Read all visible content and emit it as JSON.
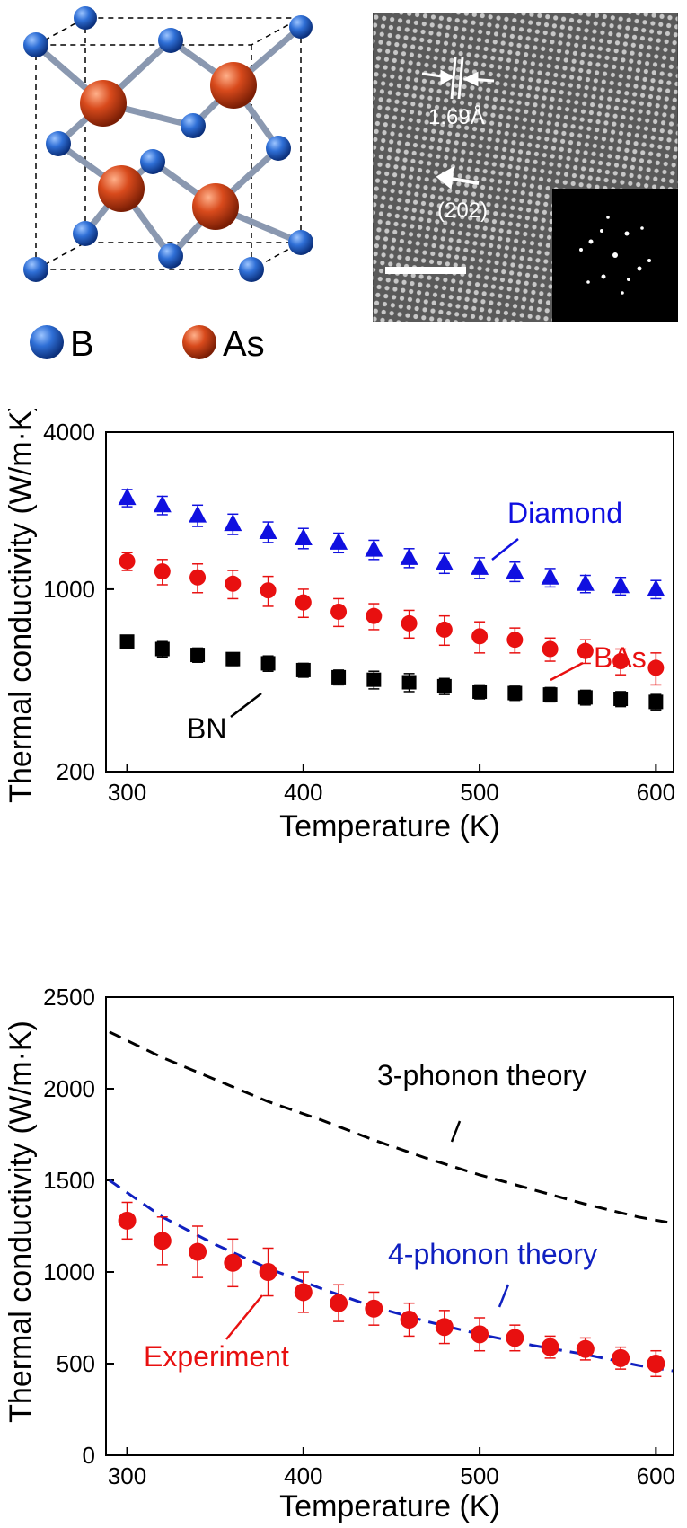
{
  "crystal": {
    "legend": [
      {
        "label": "B",
        "color": "#2f6fd6"
      },
      {
        "label": "As",
        "color": "#d84a1c"
      }
    ]
  },
  "tem": {
    "spacing_label": "1.69Å",
    "plane_label": "(202)"
  },
  "chart_data": [
    {
      "type": "scatter",
      "title": "",
      "xlabel": "Temperature (K)",
      "ylabel": "Thermal conductivity (W/m·K)",
      "xlim": [
        288,
        610
      ],
      "ylim": [
        200,
        4000
      ],
      "yscale": "log",
      "xticks": [
        300,
        400,
        500,
        600
      ],
      "yticks": [
        200,
        1000,
        4000
      ],
      "series": [
        {
          "name": "Diamond",
          "color": "#1010e0",
          "marker": "triangle",
          "x": [
            300,
            320,
            340,
            360,
            380,
            400,
            420,
            440,
            460,
            480,
            500,
            520,
            540,
            560,
            580,
            600
          ],
          "y": [
            2240,
            2100,
            1920,
            1780,
            1660,
            1570,
            1510,
            1420,
            1320,
            1260,
            1210,
            1170,
            1110,
            1050,
            1030,
            1000
          ],
          "err": [
            170,
            170,
            180,
            160,
            150,
            140,
            130,
            120,
            110,
            110,
            110,
            100,
            90,
            80,
            80,
            80
          ]
        },
        {
          "name": "BAs",
          "color": "#e81010",
          "marker": "circle",
          "x": [
            300,
            320,
            340,
            360,
            380,
            400,
            420,
            440,
            460,
            480,
            500,
            520,
            540,
            560,
            580,
            600
          ],
          "y": [
            1280,
            1170,
            1110,
            1050,
            990,
            890,
            820,
            790,
            740,
            700,
            660,
            640,
            590,
            580,
            530,
            500
          ],
          "err": [
            100,
            130,
            140,
            130,
            130,
            110,
            100,
            90,
            90,
            90,
            90,
            70,
            60,
            60,
            60,
            70
          ]
        },
        {
          "name": "BN",
          "color": "#000000",
          "marker": "square",
          "x": [
            300,
            320,
            340,
            360,
            380,
            400,
            420,
            440,
            460,
            480,
            500,
            520,
            540,
            560,
            580,
            600
          ],
          "y": [
            630,
            590,
            560,
            540,
            520,
            490,
            460,
            450,
            440,
            425,
            405,
            400,
            395,
            385,
            380,
            370
          ],
          "err": [
            35,
            40,
            35,
            30,
            35,
            30,
            30,
            35,
            35,
            30,
            25,
            25,
            25,
            25,
            25,
            25
          ]
        }
      ],
      "annotations": [
        "Diamond",
        "BAs",
        "BN"
      ]
    },
    {
      "type": "line",
      "title": "",
      "xlabel": "Temperature (K)",
      "ylabel": "Thermal conductivity (W/m·K)",
      "xlim": [
        288,
        610
      ],
      "ylim": [
        0,
        2500
      ],
      "xticks": [
        300,
        400,
        500,
        600
      ],
      "yticks": [
        0,
        500,
        1000,
        1500,
        2000,
        2500
      ],
      "series": [
        {
          "name": "3-phonon theory",
          "color": "#000000",
          "style": "dashed",
          "x": [
            290,
            320,
            350,
            380,
            410,
            440,
            470,
            500,
            530,
            560,
            590,
            610
          ],
          "y": [
            2310,
            2170,
            2050,
            1930,
            1830,
            1720,
            1620,
            1530,
            1450,
            1370,
            1300,
            1265
          ]
        },
        {
          "name": "4-phonon theory",
          "color": "#1020c0",
          "style": "dashed",
          "x": [
            290,
            320,
            350,
            380,
            410,
            440,
            470,
            500,
            530,
            560,
            590,
            610
          ],
          "y": [
            1500,
            1300,
            1150,
            1020,
            910,
            810,
            730,
            660,
            600,
            550,
            490,
            460
          ]
        },
        {
          "name": "Experiment",
          "color": "#e81010",
          "marker": "circle",
          "x": [
            300,
            320,
            340,
            360,
            380,
            400,
            420,
            440,
            460,
            480,
            500,
            520,
            540,
            560,
            580,
            600
          ],
          "y": [
            1280,
            1170,
            1110,
            1050,
            1000,
            890,
            830,
            800,
            740,
            700,
            660,
            640,
            590,
            580,
            530,
            500
          ],
          "err": [
            100,
            130,
            140,
            130,
            130,
            110,
            100,
            90,
            90,
            90,
            90,
            70,
            60,
            60,
            60,
            70
          ]
        }
      ],
      "annotations": [
        "3-phonon theory",
        "4-phonon theory",
        "Experiment"
      ]
    }
  ]
}
